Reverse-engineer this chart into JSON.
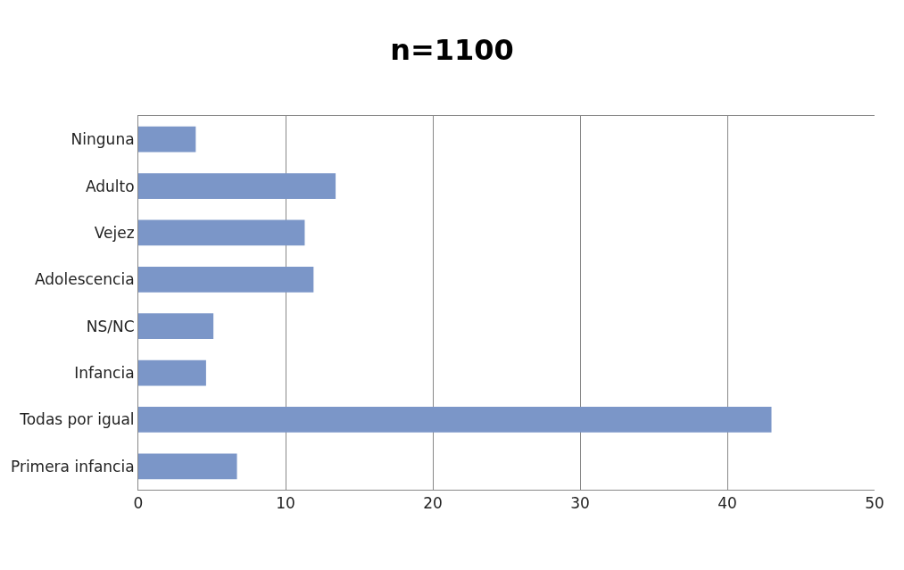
{
  "chart_data": {
    "type": "bar",
    "orientation": "horizontal",
    "title": "n=1100",
    "categories": [
      "Ninguna",
      "Adulto",
      "Vejez",
      "Adolescencia",
      "NS/NC",
      "Infancia",
      "Todas por igual",
      "Primera infancia"
    ],
    "values": [
      3.9,
      13.4,
      11.3,
      11.9,
      5.1,
      4.6,
      43.0,
      6.7
    ],
    "color": "#7b96c8",
    "xlim": [
      0,
      50
    ],
    "xticks": [
      0,
      10,
      20,
      30,
      40,
      50
    ],
    "grid": "x"
  }
}
